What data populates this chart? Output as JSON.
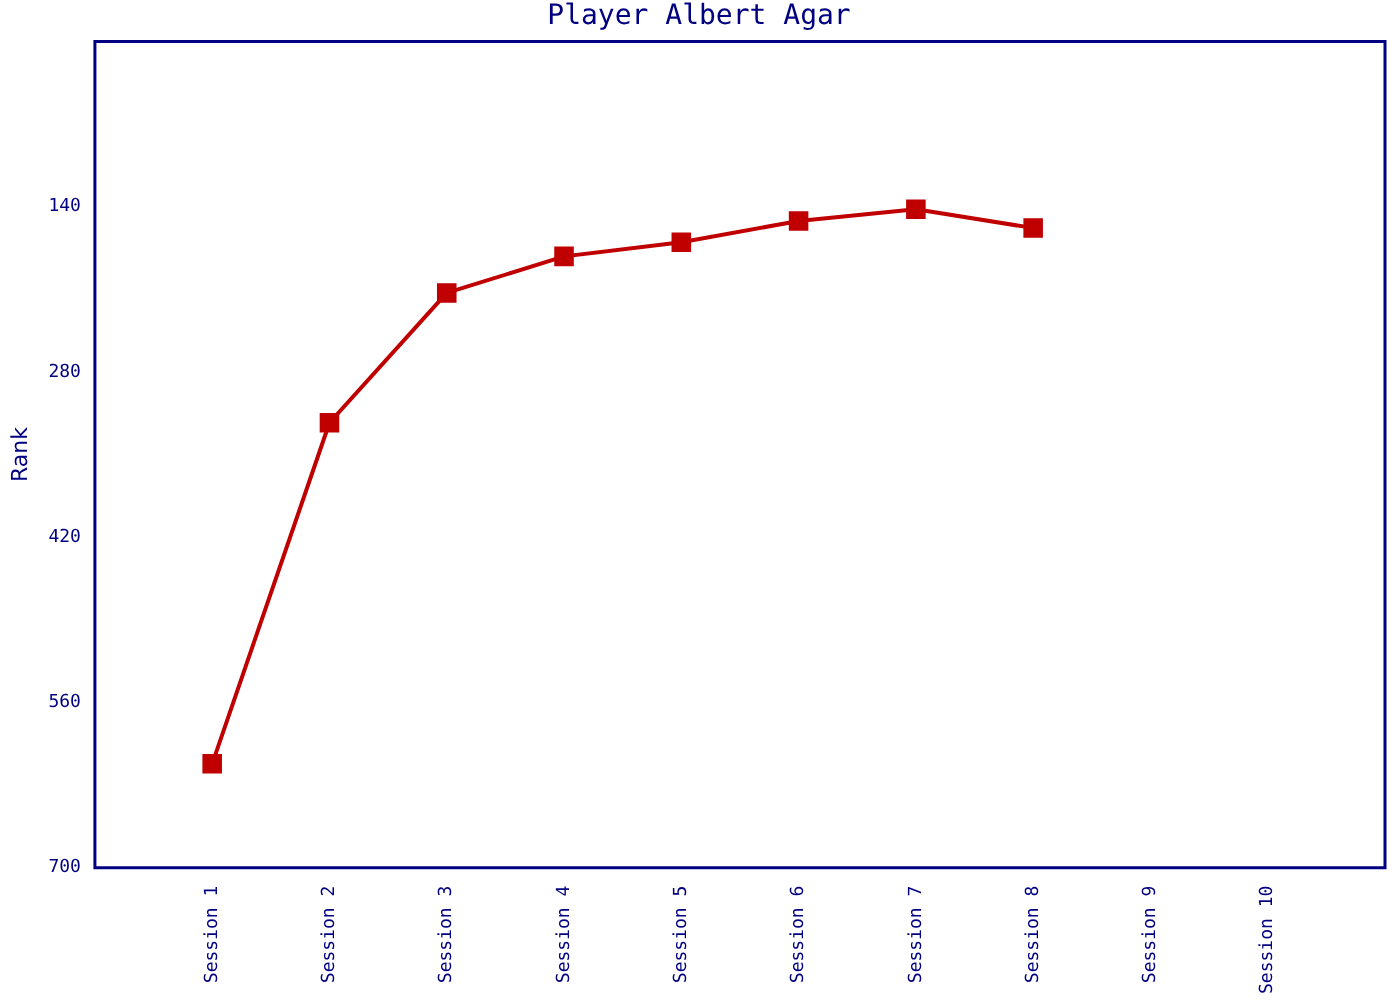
{
  "chart_data": {
    "type": "line",
    "title": "Player Albert Agar",
    "ylabel": "Rank",
    "categories": [
      "Session 1",
      "Session 2",
      "Session 3",
      "Session 4",
      "Session 5",
      "Session 6",
      "Session 7",
      "Session 8",
      "Session 9",
      "Session 10"
    ],
    "series": [
      {
        "color": "#c00000",
        "values": [
          612,
          323,
          213,
          182,
          170,
          152,
          142,
          158,
          null,
          null
        ]
      }
    ],
    "ylim": [
      700,
      0
    ],
    "yticks": [
      140,
      280,
      420,
      560,
      700
    ],
    "grid": false,
    "legend": false,
    "marker": "square",
    "line_style": "solid"
  }
}
